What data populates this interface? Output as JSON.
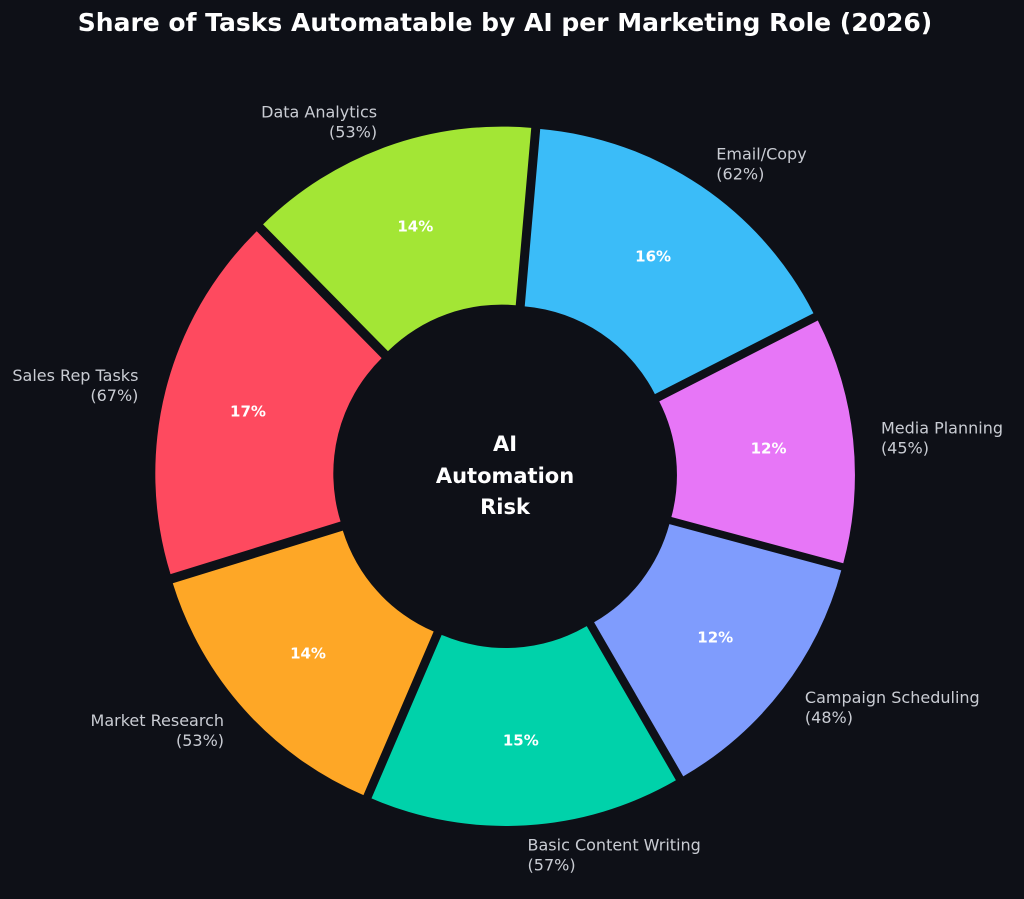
{
  "chart_data": {
    "type": "pie",
    "variant": "donut",
    "title": "Share of Tasks Automatable by AI per Marketing Role (2026)",
    "center_label": [
      "AI",
      "Automation",
      "Risk"
    ],
    "slices": [
      {
        "name": "Email/Copy",
        "role_pct_label": "(62%)",
        "value": 62,
        "share_label": "16%",
        "color": "#3bbcf8"
      },
      {
        "name": "Media Planning",
        "role_pct_label": "(45%)",
        "value": 45,
        "share_label": "12%",
        "color": "#e776f7"
      },
      {
        "name": "Campaign Scheduling",
        "role_pct_label": "(48%)",
        "value": 48,
        "share_label": "12%",
        "color": "#7f9cfd"
      },
      {
        "name": "Basic Content Writing",
        "role_pct_label": "(57%)",
        "value": 57,
        "share_label": "15%",
        "color": "#00d2aa"
      },
      {
        "name": "Market Research",
        "role_pct_label": "(53%)",
        "value": 53,
        "share_label": "14%",
        "color": "#fea726"
      },
      {
        "name": "Sales Rep Tasks",
        "role_pct_label": "(67%)",
        "value": 67,
        "share_label": "17%",
        "color": "#fe4a5f"
      },
      {
        "name": "Data Analytics",
        "role_pct_label": "(53%)",
        "value": 53,
        "share_label": "14%",
        "color": "#a3e635"
      }
    ],
    "colors": {
      "background": "#0e1017",
      "label_text": "#c9ccd3",
      "value_text": "#ffffff"
    }
  }
}
